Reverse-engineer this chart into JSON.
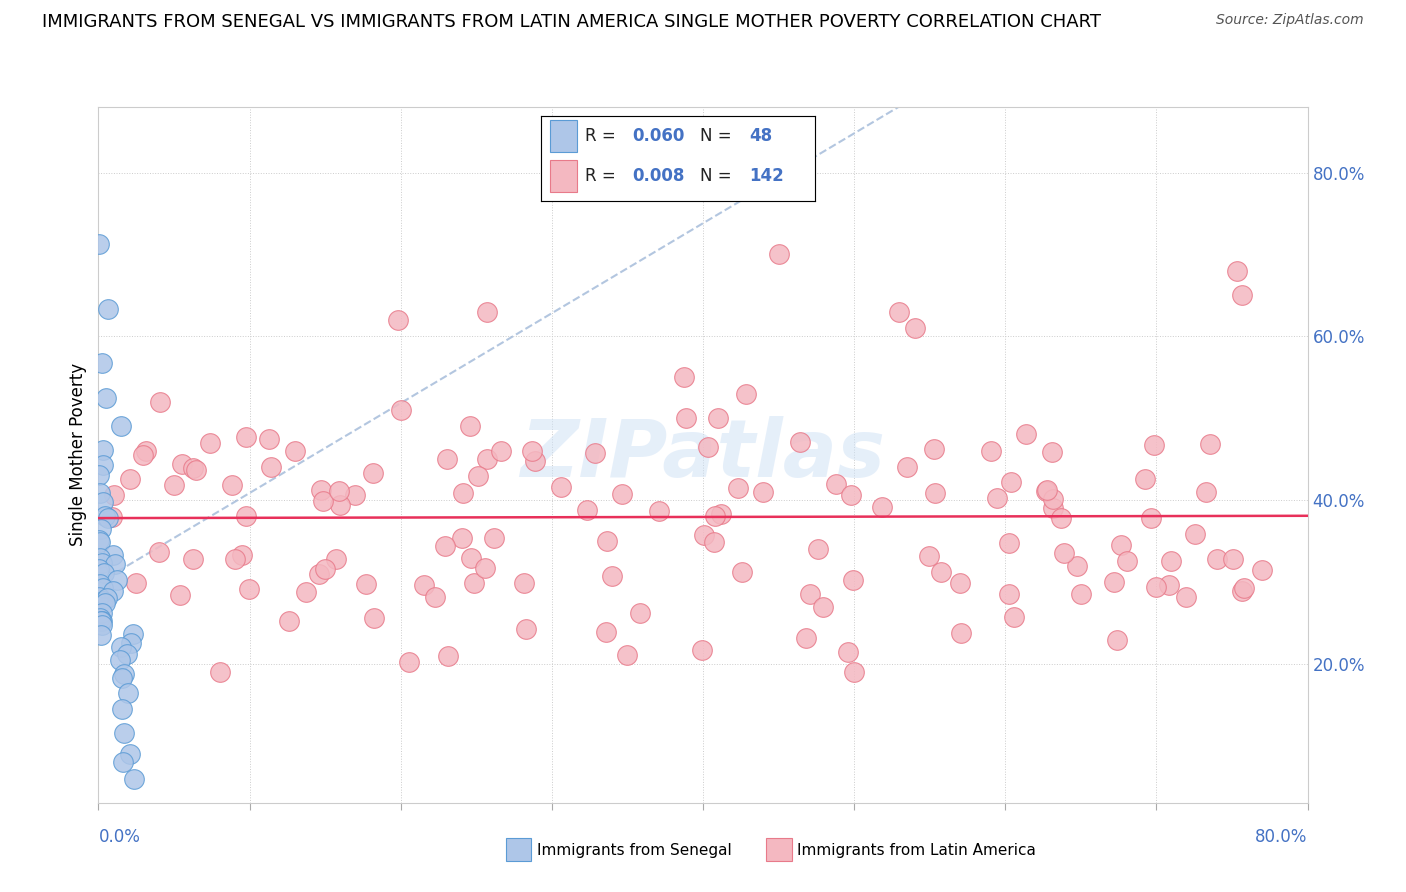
{
  "title": "IMMIGRANTS FROM SENEGAL VS IMMIGRANTS FROM LATIN AMERICA SINGLE MOTHER POVERTY CORRELATION CHART",
  "source": "Source: ZipAtlas.com",
  "ylabel": "Single Mother Poverty",
  "ytick_labels": [
    "20.0%",
    "40.0%",
    "60.0%",
    "80.0%"
  ],
  "ytick_values": [
    0.2,
    0.4,
    0.6,
    0.8
  ],
  "xlim": [
    0.0,
    0.8
  ],
  "ylim": [
    0.03,
    0.88
  ],
  "senegal_color": "#aec6e8",
  "senegal_edge": "#5b9bd5",
  "latin_color": "#f4b8c1",
  "latin_edge": "#e87a8a",
  "trend_senegal_color": "#a0b8d8",
  "trend_latin_color": "#e8305a",
  "R1": "0.060",
  "N1": "48",
  "R2": "0.008",
  "N2": "142"
}
